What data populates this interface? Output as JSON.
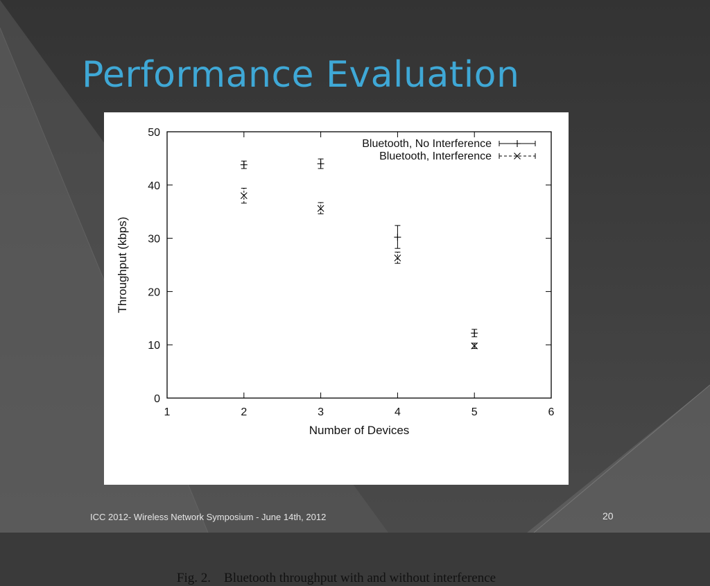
{
  "slide": {
    "title": "Performance Evaluation",
    "title_color": "#3fa8d6",
    "footer": "ICC 2012-  Wireless Network Symposium - June 14th, 2012",
    "page_number": "20",
    "caption": "Fig. 2.    Bluetooth throughput with and without interference"
  },
  "chart_data": {
    "type": "scatter",
    "title": "",
    "xlabel": "Number of Devices",
    "ylabel": "Throughput (kbps)",
    "xlim": [
      1,
      6
    ],
    "ylim": [
      0,
      50
    ],
    "x_ticks": [
      1,
      2,
      3,
      4,
      5,
      6
    ],
    "y_ticks": [
      0,
      10,
      20,
      30,
      40,
      50
    ],
    "grid": false,
    "legend_position": "top-right",
    "error_bars": true,
    "series": [
      {
        "name": "Bluetooth, No Interference",
        "marker": "plus",
        "line": "solid",
        "x": [
          2,
          3,
          4,
          5
        ],
        "y": [
          43.8,
          44.0,
          30.2,
          12.2
        ],
        "y_low": [
          43.1,
          43.1,
          28.1,
          11.5
        ],
        "y_high": [
          44.5,
          44.9,
          32.4,
          12.9
        ]
      },
      {
        "name": "Bluetooth, Interference",
        "marker": "cross",
        "line": "dashed",
        "x": [
          2,
          3,
          4,
          5
        ],
        "y": [
          38.0,
          35.6,
          26.3,
          9.8
        ],
        "y_low": [
          36.6,
          34.6,
          25.3,
          9.3
        ],
        "y_high": [
          39.4,
          36.7,
          27.4,
          10.3
        ]
      }
    ]
  }
}
